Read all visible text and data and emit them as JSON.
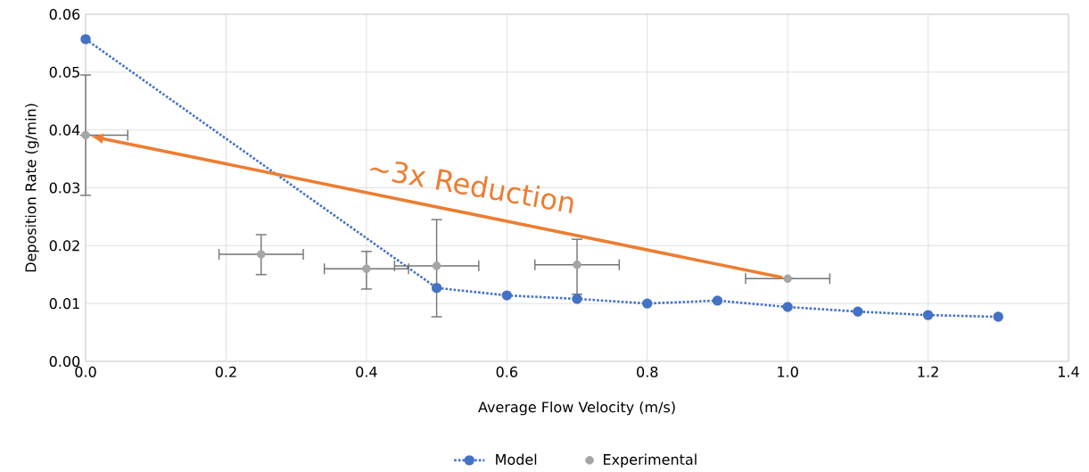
{
  "chart_data": {
    "type": "scatter",
    "xlabel": "Average Flow Velocity (m/s)",
    "ylabel": "Deposition Rate (g/min)",
    "xlim": [
      0,
      1.4
    ],
    "ylim": [
      0,
      0.06
    ],
    "xticks": [
      {
        "value": 0,
        "label": "0.0"
      },
      {
        "value": 0.2,
        "label": "0.2"
      },
      {
        "value": 0.4,
        "label": "0.4"
      },
      {
        "value": 0.6,
        "label": "0.6"
      },
      {
        "value": 0.8,
        "label": "0.8"
      },
      {
        "value": 1,
        "label": "1.0"
      },
      {
        "value": 1.2,
        "label": "1.2"
      },
      {
        "value": 1.4,
        "label": "1.4"
      }
    ],
    "yticks": [
      {
        "value": 0,
        "label": "0.00"
      },
      {
        "value": 0.01,
        "label": "0.01"
      },
      {
        "value": 0.02,
        "label": "0.02"
      },
      {
        "value": 0.03,
        "label": "0.03"
      },
      {
        "value": 0.04,
        "label": "0.04"
      },
      {
        "value": 0.05,
        "label": "0.05"
      },
      {
        "value": 0.06,
        "label": "0.06"
      }
    ],
    "grid": true,
    "legend": "bottom",
    "marker": "circle",
    "series": [
      {
        "name": "Model",
        "type": "line",
        "line_style": "dotted",
        "color": "#4472c4",
        "x": [
          0,
          0.5,
          0.6,
          0.7,
          0.8,
          0.9,
          1.0,
          1.1,
          1.2,
          1.3
        ],
        "values": [
          0.0557,
          0.0127,
          0.0114,
          0.0108,
          0.01,
          0.0105,
          0.0094,
          0.0086,
          0.008,
          0.0077
        ]
      },
      {
        "name": "Experimental",
        "color": "#a5a5a5",
        "x": [
          0,
          0.25,
          0.4,
          0.5,
          0.7,
          1.0
        ],
        "values": [
          0.0391,
          0.0185,
          0.016,
          0.0165,
          0.0167,
          0.0143
        ],
        "errors": [
          [
            0.0287,
            0.0495
          ],
          [
            0.015,
            0.0219
          ],
          [
            0.0125,
            0.019
          ],
          [
            0.0077,
            0.0245
          ],
          [
            0.0116,
            0.0211
          ],
          null
        ],
        "xerrors": [
          [
            0,
            0.06
          ],
          [
            0.19,
            0.31
          ],
          [
            0.34,
            0.46
          ],
          [
            0.44,
            0.56
          ],
          [
            0.64,
            0.76
          ],
          [
            0.94,
            1.06
          ]
        ]
      }
    ],
    "annotations": [
      "~3x Reduction"
    ]
  }
}
